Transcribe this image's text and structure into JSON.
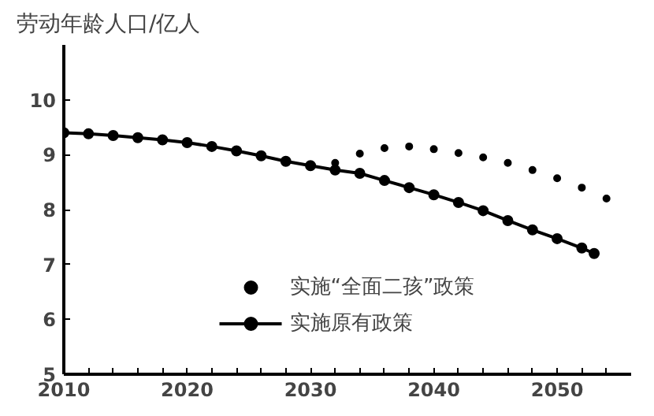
{
  "chart_data": {
    "type": "line",
    "ylabel": "劳动年龄人口/亿人",
    "xlim": [
      2010,
      2056
    ],
    "ylim": [
      5,
      11
    ],
    "xticks": [
      2010,
      {
        "value": 2012,
        "label": null
      },
      {
        "value": 2014,
        "label": null
      },
      {
        "value": 2016,
        "label": null
      },
      {
        "value": 2018,
        "label": null
      },
      2020,
      {
        "value": 2022,
        "label": null
      },
      {
        "value": 2024,
        "label": null
      },
      {
        "value": 2026,
        "label": null
      },
      {
        "value": 2028,
        "label": null
      },
      2030,
      {
        "value": 2032,
        "label": null
      },
      {
        "value": 2034,
        "label": null
      },
      {
        "value": 2036,
        "label": null
      },
      {
        "value": 2038,
        "label": null
      },
      2040,
      {
        "value": 2042,
        "label": null
      },
      {
        "value": 2044,
        "label": null
      },
      {
        "value": 2046,
        "label": null
      },
      {
        "value": 2048,
        "label": null
      },
      2050,
      {
        "value": 2052,
        "label": null
      },
      {
        "value": 2054,
        "label": null
      }
    ],
    "yticks": [
      5,
      6,
      7,
      8,
      9,
      10
    ],
    "legend": "bottom",
    "grid": false,
    "series": [
      {
        "name": "实施“全面二孩”政策",
        "color": "#000000",
        "type": "scatter",
        "marker": "circle",
        "x": [
          2032,
          2034,
          2036,
          2038,
          2040,
          2042,
          2044,
          2046,
          2048,
          2050,
          2052,
          2054
        ],
        "values": [
          8.85,
          9.02,
          9.12,
          9.15,
          9.1,
          9.03,
          8.95,
          8.85,
          8.72,
          8.57,
          8.4,
          8.2
        ]
      },
      {
        "name": "实施原有政策",
        "color": "#000000",
        "marker": "circle",
        "line_style": "solid",
        "x": [
          2010,
          2012,
          2014,
          2016,
          2018,
          2020,
          2022,
          2024,
          2026,
          2028,
          2030,
          2032,
          2034,
          2036,
          2038,
          2040,
          2042,
          2044,
          2046,
          2048,
          2050,
          2052,
          2053
        ],
        "values": [
          9.4,
          9.38,
          9.35,
          9.31,
          9.27,
          9.22,
          9.15,
          9.07,
          8.98,
          8.88,
          8.8,
          8.72,
          8.66,
          8.53,
          8.4,
          8.27,
          8.13,
          7.98,
          7.8,
          7.63,
          7.47,
          7.3,
          7.2
        ]
      }
    ]
  }
}
